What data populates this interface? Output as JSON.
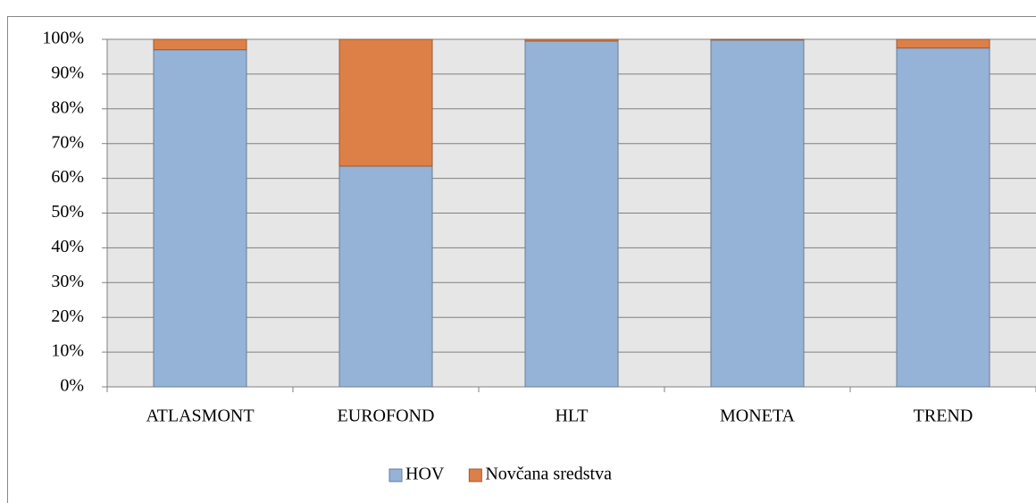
{
  "chart_data": {
    "type": "stacked_bar",
    "categories": [
      "ATLASMONT",
      "EUROFOND",
      "HLT",
      "MONETA",
      "TREND"
    ],
    "series": [
      {
        "name": "HOV",
        "color": "#95b3d7",
        "values": [
          97,
          63.5,
          99.5,
          99.8,
          97.5
        ]
      },
      {
        "name": "Novčana sredstva",
        "color": "#dd8047",
        "values": [
          3,
          36.5,
          0.5,
          0.2,
          2.5
        ]
      }
    ],
    "ylim": [
      0,
      100
    ],
    "yticks": [
      {
        "value": 0,
        "label": "0%"
      },
      {
        "value": 10,
        "label": "10%"
      },
      {
        "value": 20,
        "label": "20%"
      },
      {
        "value": 30,
        "label": "30%"
      },
      {
        "value": 40,
        "label": "40%"
      },
      {
        "value": 50,
        "label": "50%"
      },
      {
        "value": 60,
        "label": "60%"
      },
      {
        "value": 70,
        "label": "70%"
      },
      {
        "value": 80,
        "label": "80%"
      },
      {
        "value": 90,
        "label": "90%"
      },
      {
        "value": 100,
        "label": "100%"
      }
    ],
    "grid": true,
    "legend": "bottom"
  }
}
